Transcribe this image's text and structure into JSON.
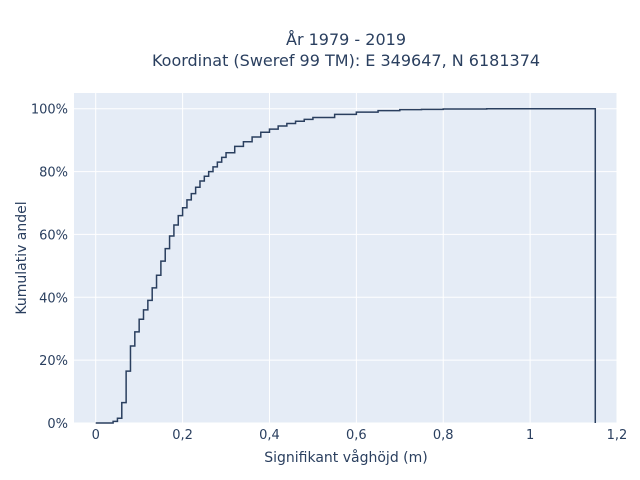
{
  "chart_data": {
    "type": "line",
    "subtype": "ecdf-step",
    "title_lines": [
      "År 1979 - 2019",
      "Koordinat (Sweref 99 TM): E 349647, N 6181374"
    ],
    "xlabel": "Signifikant våghöjd (m)",
    "ylabel": "Kumulativ andel",
    "xlim": [
      -0.05,
      1.2
    ],
    "ylim": [
      0,
      1.05
    ],
    "x_ticks": [
      0,
      0.2,
      0.4,
      0.6,
      0.8,
      1,
      1.2
    ],
    "x_tick_labels": [
      "0",
      "0,2",
      "0,4",
      "0,6",
      "0,8",
      "1",
      "1,2"
    ],
    "y_ticks": [
      0,
      0.2,
      0.4,
      0.6,
      0.8,
      1
    ],
    "y_tick_labels": [
      "0%",
      "20%",
      "40%",
      "60%",
      "80%",
      "100%"
    ],
    "grid": true,
    "legend": "none",
    "colors": {
      "plot_bg": "#e5ecf6",
      "grid": "#ffffff",
      "line": "#2a3f5f",
      "text": "#2a3f5f"
    },
    "series": [
      {
        "x": [
          0.0,
          0.04,
          0.05,
          0.06,
          0.07,
          0.08,
          0.09,
          0.1,
          0.11,
          0.12,
          0.13,
          0.14,
          0.15,
          0.16,
          0.17,
          0.18,
          0.19,
          0.2,
          0.21,
          0.22,
          0.23,
          0.24,
          0.25,
          0.26,
          0.27,
          0.28,
          0.29,
          0.3,
          0.32,
          0.34,
          0.36,
          0.38,
          0.4,
          0.42,
          0.44,
          0.46,
          0.48,
          0.5,
          0.55,
          0.6,
          0.65,
          0.7,
          0.75,
          0.8,
          0.9,
          1.0,
          1.15
        ],
        "y": [
          0.0,
          0.005,
          0.015,
          0.065,
          0.165,
          0.245,
          0.29,
          0.33,
          0.36,
          0.39,
          0.43,
          0.47,
          0.515,
          0.555,
          0.595,
          0.63,
          0.66,
          0.685,
          0.71,
          0.73,
          0.75,
          0.77,
          0.785,
          0.8,
          0.815,
          0.83,
          0.845,
          0.86,
          0.88,
          0.895,
          0.91,
          0.925,
          0.935,
          0.945,
          0.953,
          0.96,
          0.966,
          0.972,
          0.982,
          0.989,
          0.994,
          0.997,
          0.998,
          0.999,
          1.0,
          1.0,
          1.0
        ]
      }
    ]
  }
}
